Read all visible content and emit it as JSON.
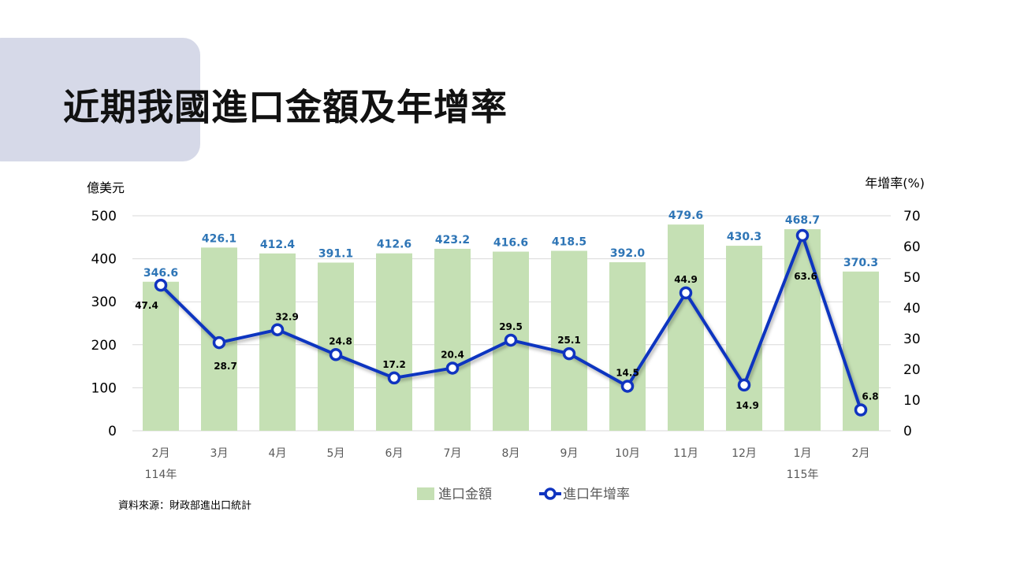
{
  "title": "近期我國進口金額及年增率",
  "source": "資料來源：財政部進出口統計",
  "chart_data": {
    "type": "bar+line",
    "title": "近期我國進口金額及年增率",
    "categories": [
      "2月",
      "3月",
      "4月",
      "5月",
      "6月",
      "7月",
      "8月",
      "9月",
      "10月",
      "11月",
      "12月",
      "1月",
      "2月"
    ],
    "year_labels": [
      {
        "index": 0,
        "label": "114年"
      },
      {
        "index": 11,
        "label": "115年"
      }
    ],
    "left_axis": {
      "label": "億美元",
      "ylim": [
        0,
        500
      ],
      "ticks": [
        0,
        100,
        200,
        300,
        400,
        500
      ]
    },
    "right_axis": {
      "label": "年增率(%)",
      "ylim": [
        0,
        70
      ],
      "ticks": [
        0,
        10,
        20,
        30,
        40,
        50,
        60,
        70
      ]
    },
    "series": [
      {
        "name": "進口金額",
        "type": "bar",
        "axis": "left",
        "color": "#c5e0b4",
        "label_color": "#2e75b6",
        "values": [
          346.6,
          426.1,
          412.4,
          391.1,
          412.6,
          423.2,
          416.6,
          418.5,
          392.0,
          479.6,
          430.3,
          468.7,
          370.3
        ],
        "labels": [
          "346.6",
          "426.1",
          "412.4",
          "391.1",
          "412.6",
          "423.2",
          "416.6",
          "418.5",
          "392.0",
          "479.6",
          "430.3",
          "468.7",
          "370.3"
        ]
      },
      {
        "name": "進口年增率",
        "type": "line",
        "axis": "right",
        "color": "#1034c0",
        "label_color": "#000000",
        "values": [
          47.4,
          28.7,
          32.9,
          24.8,
          17.2,
          20.4,
          29.5,
          25.1,
          14.5,
          44.9,
          14.9,
          63.6,
          6.8
        ],
        "labels": [
          "47.4",
          "28.7",
          "32.9",
          "24.8",
          "17.2",
          "20.4",
          "29.5",
          "25.1",
          "14.5",
          "44.9",
          "14.9",
          "63.6",
          "6.8"
        ]
      }
    ],
    "grid": true,
    "legend_position": "bottom"
  }
}
